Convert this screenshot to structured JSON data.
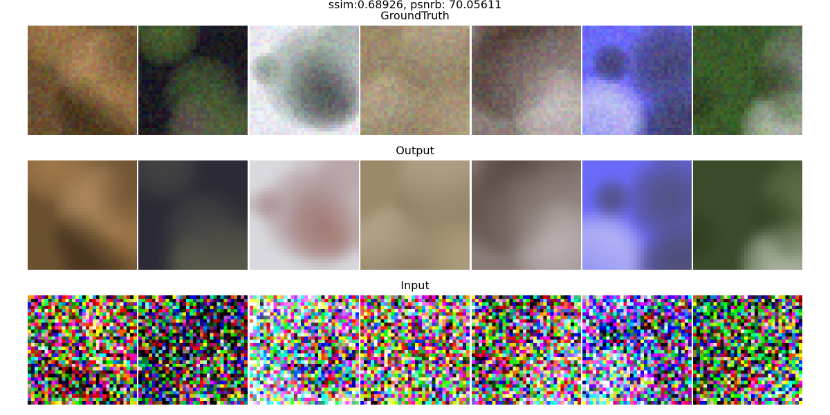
{
  "figure": {
    "suptitle": "ssim:0.68926, psnrb: 70.05611"
  },
  "rows": [
    {
      "title": "GroundTruth",
      "kind": "clean",
      "images": [
        {
          "subject": "cat-closeup",
          "palette": [
            "#6a5030",
            "#8a6a45",
            "#b08550",
            "#3b2a18",
            "#c9a070"
          ]
        },
        {
          "subject": "black-dog-on-grass",
          "palette": [
            "#1c1a22",
            "#2c2a34",
            "#7a9a4a",
            "#8a3a8a",
            "#5a7a30"
          ]
        },
        {
          "subject": "white-dog",
          "palette": [
            "#e8e8ee",
            "#9aa8a0",
            "#7c8f82",
            "#c8c0bf",
            "#2a2a30"
          ]
        },
        {
          "subject": "horse",
          "palette": [
            "#9a8a6a",
            "#b0a080",
            "#7a6a50",
            "#4a5a2a",
            "#c8b8a0"
          ]
        },
        {
          "subject": "dog-on-steps",
          "palette": [
            "#8a7c78",
            "#a09590",
            "#3a2a22",
            "#d8d0d0",
            "#6a5a55"
          ]
        },
        {
          "subject": "airplane-blue-sky",
          "palette": [
            "#6a6af8",
            "#7070ff",
            "#f0f0f0",
            "#3a3a50",
            "#ffffff"
          ]
        },
        {
          "subject": "cat-on-grass",
          "palette": [
            "#3a5a2a",
            "#4a6a30",
            "#8a8a8a",
            "#d8d8d8",
            "#2a3a1a"
          ]
        }
      ]
    },
    {
      "title": "Output",
      "kind": "blurred",
      "images": [
        {
          "subject": "cat-closeup",
          "palette": [
            "#6a5030",
            "#8a6a45",
            "#b08550",
            "#3b2a18",
            "#c9a070"
          ]
        },
        {
          "subject": "black-dog-on-grass",
          "palette": [
            "#2c2a34",
            "#3c3a40",
            "#8a8a5a",
            "#6a6a50",
            "#4a4a48"
          ]
        },
        {
          "subject": "white-dog",
          "palette": [
            "#d8d8de",
            "#b0b4b8",
            "#a08080",
            "#c8c0c0",
            "#9a6a60"
          ]
        },
        {
          "subject": "horse",
          "palette": [
            "#9a8a6a",
            "#b0a080",
            "#7a6a50",
            "#5a6a3a",
            "#c8b8a0"
          ]
        },
        {
          "subject": "dog-on-steps",
          "palette": [
            "#8a7c78",
            "#a09590",
            "#4a3a32",
            "#c8c0c0",
            "#6a5a55"
          ]
        },
        {
          "subject": "airplane-blue-sky",
          "palette": [
            "#6a6af8",
            "#7070ff",
            "#e0e0f0",
            "#4a4a60",
            "#d8d8ff"
          ]
        },
        {
          "subject": "cat-on-grass",
          "palette": [
            "#3a4a2a",
            "#4a5a30",
            "#6a7a50",
            "#d0d8c8",
            "#2a3a1a"
          ]
        }
      ]
    },
    {
      "title": "Input",
      "kind": "noisy",
      "images": [
        {
          "subject": "cat-closeup",
          "palette": [
            "#6a5030",
            "#8a6a45",
            "#b08550",
            "#3b2a18",
            "#c9a070"
          ]
        },
        {
          "subject": "black-dog-on-grass",
          "palette": [
            "#1c1a22",
            "#2c2a34",
            "#7a9a4a",
            "#8a3a8a",
            "#5a7a30"
          ]
        },
        {
          "subject": "white-dog",
          "palette": [
            "#e8e8ee",
            "#9aa8a0",
            "#7c8f82",
            "#c8c0bf",
            "#2a2a30"
          ]
        },
        {
          "subject": "horse",
          "palette": [
            "#9a8a6a",
            "#b0a080",
            "#7a6a50",
            "#4a5a2a",
            "#c8b8a0"
          ]
        },
        {
          "subject": "dog-on-steps",
          "palette": [
            "#8a7c78",
            "#a09590",
            "#3a2a22",
            "#d8d0d0",
            "#6a5a55"
          ]
        },
        {
          "subject": "airplane-blue-sky",
          "palette": [
            "#6a6af8",
            "#7070ff",
            "#f0f0f0",
            "#3a3a50",
            "#ffffff"
          ]
        },
        {
          "subject": "cat-on-grass",
          "palette": [
            "#3a5a2a",
            "#4a6a30",
            "#8a8a8a",
            "#d8d8d8",
            "#2a3a1a"
          ]
        }
      ]
    }
  ]
}
